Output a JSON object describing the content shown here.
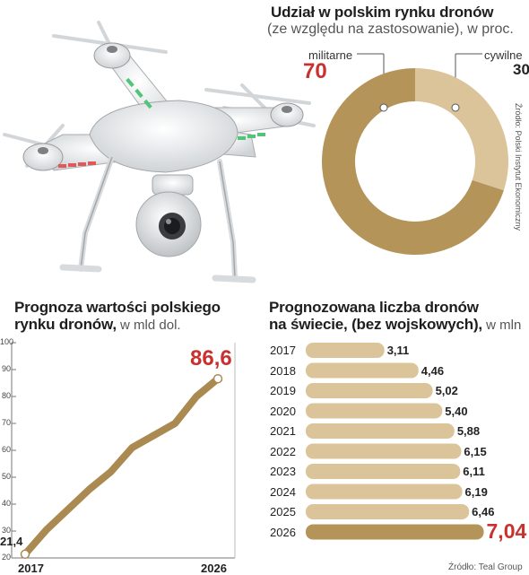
{
  "donut": {
    "title": "Udział w polskim rynku dronów",
    "subtitle": "(ze względu na zastosowanie), w proc.",
    "source": "Źródło: Polski Instytut Ekonomiczny",
    "colors": {
      "militarne": "#b5945a",
      "cywilne": "#dcc49a"
    }
  },
  "line": {
    "title_bold": "Prognoza wartości polskiego",
    "title_bold2": "rynku dronów,",
    "title_rest": " w mld dol.",
    "first_label": "21,4",
    "last_label": "86,6",
    "color": "#ab8a52"
  },
  "bars": {
    "title_bold": "Prognozowana liczba dronów",
    "title_bold2": "na świecie, (bez wojskowych),",
    "title_rest": " w mln",
    "source": "Źródło: Teal Group",
    "color": "#dcc49a",
    "highlight_color": "#b5945a"
  },
  "chart_data": [
    {
      "type": "pie",
      "title": "Udział w polskim rynku dronów",
      "categories": [
        "militarne",
        "cywilne"
      ],
      "values": [
        70,
        30
      ],
      "value_labels": [
        "70",
        "30"
      ]
    },
    {
      "type": "line",
      "title": "Prognoza wartości polskiego rynku dronów, w mld dol.",
      "x": [
        2017,
        2018,
        2019,
        2020,
        2021,
        2022,
        2023,
        2024,
        2025,
        2026
      ],
      "x_tick_labels": [
        "2017",
        "2026"
      ],
      "y": [
        21.4,
        30.5,
        38,
        45.5,
        52,
        61,
        65.5,
        70,
        80,
        86.6
      ],
      "ylim": [
        20,
        100
      ],
      "y_ticks": [
        "20",
        "30",
        "40",
        "50",
        "60",
        "70",
        "80",
        "90",
        "100"
      ],
      "grid": false
    },
    {
      "type": "bar",
      "title": "Prognozowana liczba dronów na świecie, (bez wojskowych), w mln",
      "categories": [
        "2017",
        "2018",
        "2019",
        "2020",
        "2021",
        "2022",
        "2023",
        "2024",
        "2025",
        "2026"
      ],
      "values": [
        3.11,
        4.46,
        5.02,
        5.4,
        5.88,
        6.15,
        6.11,
        6.19,
        6.46,
        7.04
      ],
      "value_labels": [
        "3,11",
        "4,46",
        "5,02",
        "5,40",
        "5,88",
        "6,15",
        "6,11",
        "6,19",
        "6,46",
        "7,04"
      ]
    }
  ]
}
